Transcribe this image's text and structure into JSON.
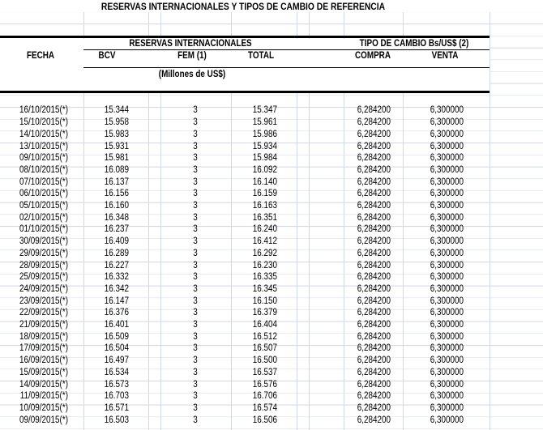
{
  "title": "RESERVAS INTERNACIONALES Y TIPOS DE CAMBIO DE REFERENCIA",
  "headers": {
    "group_reserves": "RESERVAS INTERNACIONALES",
    "group_exchange": "TIPO DE CAMBIO Bs/US$ (2)",
    "fecha": "FECHA",
    "bcv": "BCV",
    "fem": "FEM (1)",
    "total": "TOTAL",
    "compra": "COMPRA",
    "venta": "VENTA",
    "units": "(Millones de US$)"
  },
  "rows": [
    {
      "fecha": "16/10/2015(*)",
      "bcv": "15.344",
      "fem": "3",
      "total": "15.347",
      "compra": "6,284200",
      "venta": "6,300000"
    },
    {
      "fecha": "15/10/2015(*)",
      "bcv": "15.958",
      "fem": "3",
      "total": "15.961",
      "compra": "6,284200",
      "venta": "6,300000"
    },
    {
      "fecha": "14/10/2015(*)",
      "bcv": "15.983",
      "fem": "3",
      "total": "15.986",
      "compra": "6,284200",
      "venta": "6,300000"
    },
    {
      "fecha": "13/10/2015(*)",
      "bcv": "15.931",
      "fem": "3",
      "total": "15.934",
      "compra": "6,284200",
      "venta": "6,300000"
    },
    {
      "fecha": "09/10/2015(*)",
      "bcv": "15.981",
      "fem": "3",
      "total": "15.984",
      "compra": "6,284200",
      "venta": "6,300000"
    },
    {
      "fecha": "08/10/2015(*)",
      "bcv": "16.089",
      "fem": "3",
      "total": "16.092",
      "compra": "6,284200",
      "venta": "6,300000"
    },
    {
      "fecha": "07/10/2015(*)",
      "bcv": "16.137",
      "fem": "3",
      "total": "16.140",
      "compra": "6,284200",
      "venta": "6,300000"
    },
    {
      "fecha": "06/10/2015(*)",
      "bcv": "16.156",
      "fem": "3",
      "total": "16.159",
      "compra": "6,284200",
      "venta": "6,300000"
    },
    {
      "fecha": "05/10/2015(*)",
      "bcv": "16.160",
      "fem": "3",
      "total": "16.163",
      "compra": "6,284200",
      "venta": "6,300000"
    },
    {
      "fecha": "02/10/2015(*)",
      "bcv": "16.348",
      "fem": "3",
      "total": "16.351",
      "compra": "6,284200",
      "venta": "6,300000"
    },
    {
      "fecha": "01/10/2015(*)",
      "bcv": "16.237",
      "fem": "3",
      "total": "16.240",
      "compra": "6,284200",
      "venta": "6,300000"
    },
    {
      "fecha": "30/09/2015(*)",
      "bcv": "16.409",
      "fem": "3",
      "total": "16.412",
      "compra": "6,284200",
      "venta": "6,300000"
    },
    {
      "fecha": "29/09/2015(*)",
      "bcv": "16.289",
      "fem": "3",
      "total": "16.292",
      "compra": "6,284200",
      "venta": "6,300000"
    },
    {
      "fecha": "28/09/2015(*)",
      "bcv": "16.227",
      "fem": "3",
      "total": "16.230",
      "compra": "6,284200",
      "venta": "6,300000"
    },
    {
      "fecha": "25/09/2015(*)",
      "bcv": "16.332",
      "fem": "3",
      "total": "16.335",
      "compra": "6,284200",
      "venta": "6,300000"
    },
    {
      "fecha": "24/09/2015(*)",
      "bcv": "16.342",
      "fem": "3",
      "total": "16.345",
      "compra": "6,284200",
      "venta": "6,300000"
    },
    {
      "fecha": "23/09/2015(*)",
      "bcv": "16.147",
      "fem": "3",
      "total": "16.150",
      "compra": "6,284200",
      "venta": "6,300000"
    },
    {
      "fecha": "22/09/2015(*)",
      "bcv": "16.376",
      "fem": "3",
      "total": "16.379",
      "compra": "6,284200",
      "venta": "6,300000"
    },
    {
      "fecha": "21/09/2015(*)",
      "bcv": "16.401",
      "fem": "3",
      "total": "16.404",
      "compra": "6,284200",
      "venta": "6,300000"
    },
    {
      "fecha": "18/09/2015(*)",
      "bcv": "16.509",
      "fem": "3",
      "total": "16.512",
      "compra": "6,284200",
      "venta": "6,300000"
    },
    {
      "fecha": "17/09/2015(*)",
      "bcv": "16.504",
      "fem": "3",
      "total": "16.507",
      "compra": "6,284200",
      "venta": "6,300000"
    },
    {
      "fecha": "16/09/2015(*)",
      "bcv": "16.497",
      "fem": "3",
      "total": "16.500",
      "compra": "6,284200",
      "venta": "6,300000"
    },
    {
      "fecha": "15/09/2015(*)",
      "bcv": "16.534",
      "fem": "3",
      "total": "16.537",
      "compra": "6,284200",
      "venta": "6,300000"
    },
    {
      "fecha": "14/09/2015(*)",
      "bcv": "16.573",
      "fem": "3",
      "total": "16.576",
      "compra": "6,284200",
      "venta": "6,300000"
    },
    {
      "fecha": "11/09/2015(*)",
      "bcv": "16.703",
      "fem": "3",
      "total": "16.706",
      "compra": "6,284200",
      "venta": "6,300000"
    },
    {
      "fecha": "10/09/2015(*)",
      "bcv": "16.571",
      "fem": "3",
      "total": "16.574",
      "compra": "6,284200",
      "venta": "6,300000"
    },
    {
      "fecha": "09/09/2015(*)",
      "bcv": "16.503",
      "fem": "3",
      "total": "16.506",
      "compra": "6,284200",
      "venta": "6,300000"
    }
  ]
}
